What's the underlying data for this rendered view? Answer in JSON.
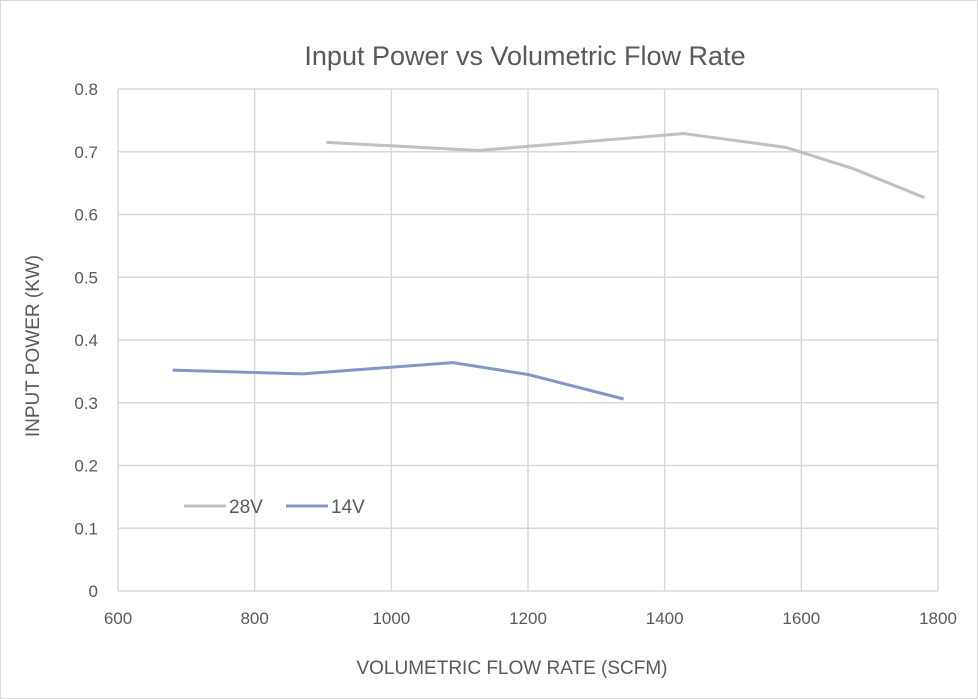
{
  "chart_data": {
    "type": "line",
    "title": "Input Power vs Volumetric Flow Rate",
    "xlabel": "VOLUMETRIC FLOW RATE (SCFM)",
    "ylabel": "INPUT POWER (KW)",
    "xlim": [
      600,
      1800
    ],
    "ylim": [
      0,
      0.8
    ],
    "xticks": [
      "600",
      "800",
      "1000",
      "1200",
      "1400",
      "1600",
      "1800"
    ],
    "yticks": [
      "0",
      "0.1",
      "0.2",
      "0.3",
      "0.4",
      "0.5",
      "0.6",
      "0.7",
      "0.8"
    ],
    "grid": true,
    "legend_position": "bottom-left",
    "series": [
      {
        "name": "28V",
        "color": "#c0c0c0",
        "x": [
          905,
          1127,
          1428,
          1577,
          1676,
          1780
        ],
        "y": [
          0.715,
          0.702,
          0.729,
          0.707,
          0.673,
          0.627
        ]
      },
      {
        "name": "14V",
        "color": "#8397c6",
        "x": [
          680,
          870,
          1090,
          1200,
          1340
        ],
        "y": [
          0.352,
          0.346,
          0.364,
          0.345,
          0.306
        ]
      }
    ]
  }
}
